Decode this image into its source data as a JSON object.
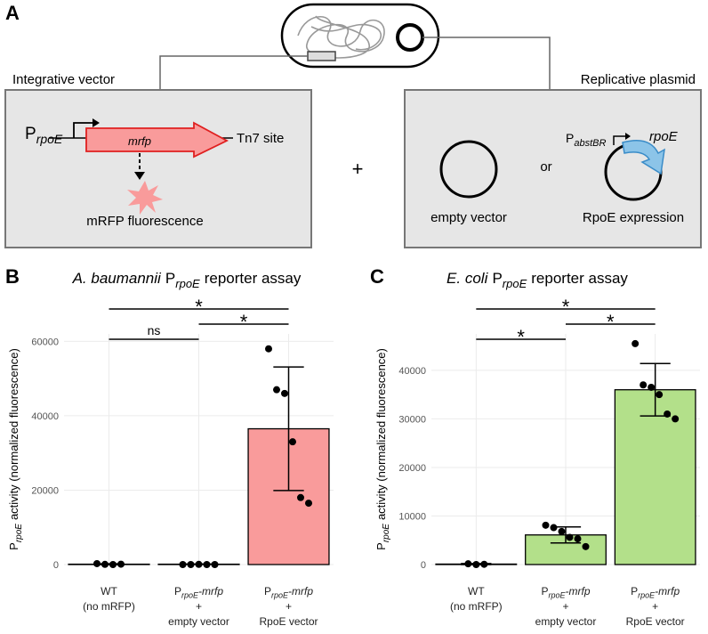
{
  "panel_labels": {
    "a": "A",
    "b": "B",
    "c": "C"
  },
  "diagram": {
    "left_box_title": "Integrative vector",
    "right_box_title": "Replicative plasmid",
    "promoter": {
      "base": "P",
      "sub": "rpoE"
    },
    "gene": "mrfp",
    "site": "Tn7 site",
    "readout": "mRFP fluorescence",
    "plus": "+",
    "empty": "empty vector",
    "or": "or",
    "plasmid_promoter": {
      "base": "P",
      "sub": "abstBR"
    },
    "plasmid_gene": "rpoE",
    "expression": "RpoE expression"
  },
  "chart_data": [
    {
      "type": "bar",
      "title": {
        "italic": "A. baumannii",
        "base": "P",
        "sub": "rpoE",
        "rest": "reporter assay"
      },
      "y_label": {
        "base": "P",
        "sub": "rpoE",
        "rest": "activity (normalized fluorescence)"
      },
      "categories": [
        [
          "WT",
          "(no mRFP)"
        ],
        [
          {
            "base": "P",
            "sub": "rpoE",
            "rest": "-mrfp"
          },
          "+",
          "empty vector"
        ],
        [
          {
            "base": "P",
            "sub": "rpoE",
            "rest": "-mrfp"
          },
          "+",
          "RpoE vector"
        ]
      ],
      "values": [
        100,
        100,
        36500
      ],
      "errors": [
        100,
        50,
        16600
      ],
      "points": [
        [
          250,
          50,
          0,
          100
        ],
        [
          0,
          0,
          50,
          0,
          0
        ],
        [
          58000,
          47000,
          46000,
          33000,
          18000,
          16500
        ]
      ],
      "colors": [
        "#ffffff",
        "#ffffff",
        "#f99b9b"
      ],
      "ylim": [
        0,
        62000
      ],
      "yticks": [
        0,
        20000,
        40000,
        60000
      ],
      "grid": true,
      "comparisons": [
        {
          "from": 0,
          "to": 1,
          "label": "ns"
        },
        {
          "from": 1,
          "to": 2,
          "label": "*"
        },
        {
          "from": 0,
          "to": 2,
          "label": "*"
        }
      ]
    },
    {
      "type": "bar",
      "title": {
        "italic": "E. coli",
        "base": "P",
        "sub": "rpoE",
        "rest": "reporter assay"
      },
      "y_label": {
        "base": "P",
        "sub": "rpoE",
        "rest": "activity (normalized fluorescence)"
      },
      "categories": [
        [
          "WT",
          "(no mRFP)"
        ],
        [
          {
            "base": "P",
            "sub": "rpoE",
            "rest": "-mrfp"
          },
          "+",
          "empty vector"
        ],
        [
          {
            "base": "P",
            "sub": "rpoE",
            "rest": "-mrfp"
          },
          "+",
          "RpoE vector"
        ]
      ],
      "values": [
        100,
        6100,
        36000
      ],
      "errors": [
        100,
        1650,
        5400
      ],
      "points": [
        [
          150,
          0,
          50
        ],
        [
          8100,
          7600,
          6800,
          5600,
          5300,
          3700
        ],
        [
          45500,
          37000,
          36500,
          35000,
          31000,
          30000
        ]
      ],
      "colors": [
        "#ffffff",
        "#b3e08a",
        "#b3e08a"
      ],
      "ylim": [
        0,
        47500
      ],
      "yticks": [
        0,
        10000,
        20000,
        30000,
        40000
      ],
      "grid": true,
      "comparisons": [
        {
          "from": 0,
          "to": 1,
          "label": "*"
        },
        {
          "from": 1,
          "to": 2,
          "label": "*"
        },
        {
          "from": 0,
          "to": 2,
          "label": "*"
        }
      ]
    }
  ]
}
